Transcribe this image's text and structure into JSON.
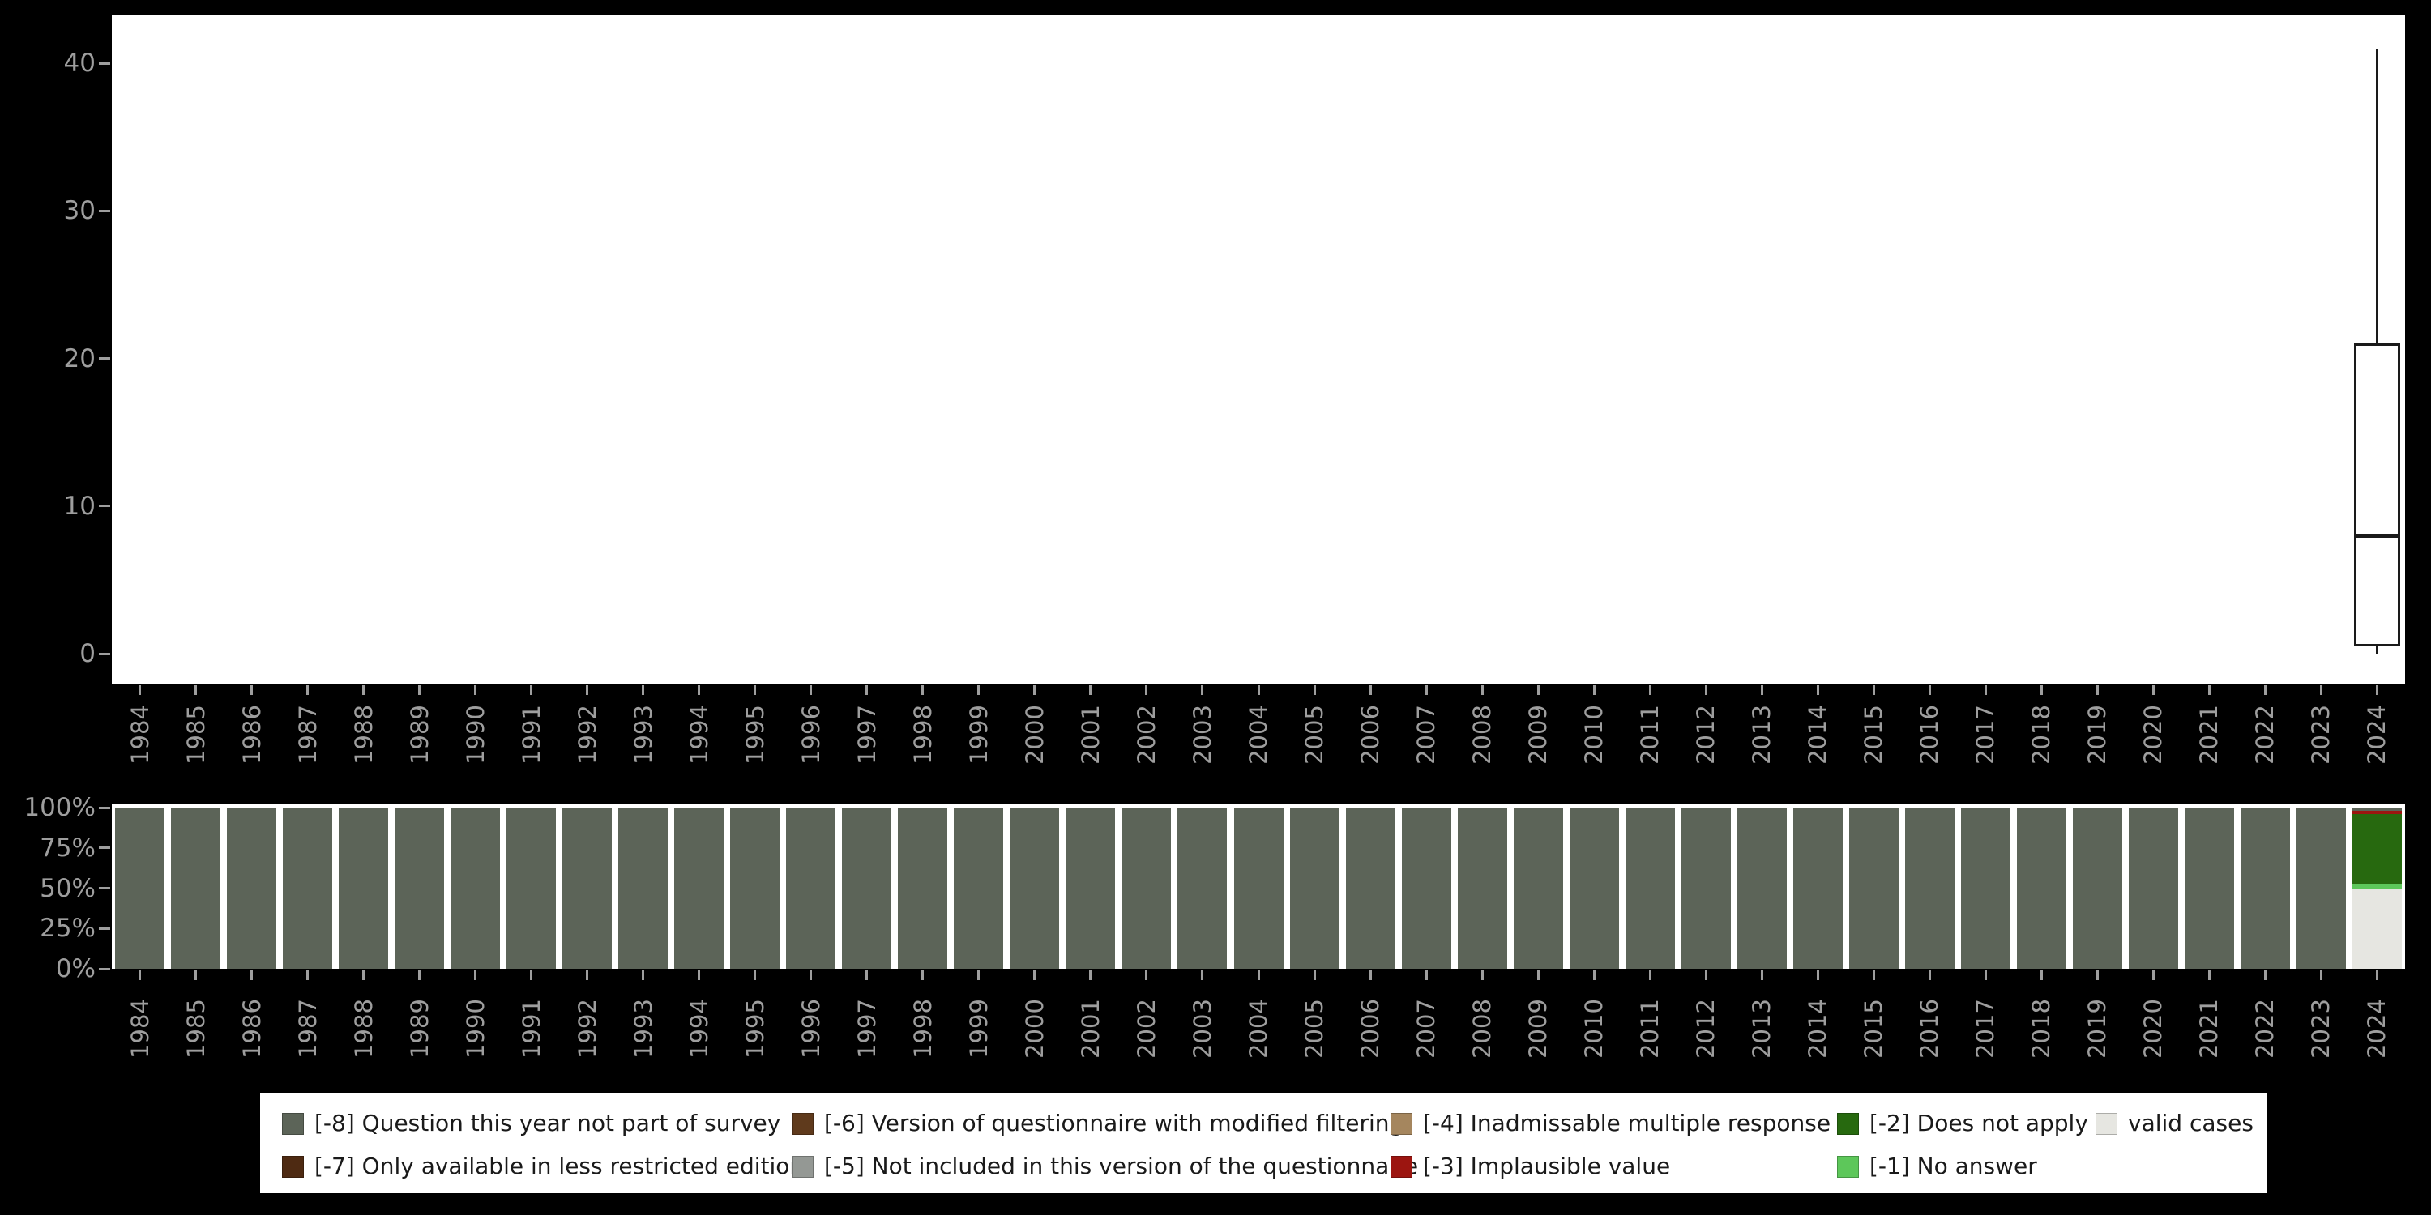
{
  "style": {
    "background": "#000000",
    "plot_background": "#ffffff",
    "axis_text_color": "#9e9e9e",
    "box_outline_color": "#1a1a1a",
    "legend_background": "#ffffff",
    "legend_text_color": "#1a1a1a"
  },
  "chart_data": {
    "categories": [
      "1984",
      "1985",
      "1986",
      "1987",
      "1988",
      "1989",
      "1990",
      "1991",
      "1992",
      "1993",
      "1994",
      "1995",
      "1996",
      "1997",
      "1998",
      "1999",
      "2000",
      "2001",
      "2002",
      "2003",
      "2004",
      "2005",
      "2006",
      "2007",
      "2008",
      "2009",
      "2010",
      "2011",
      "2012",
      "2013",
      "2014",
      "2015",
      "2016",
      "2017",
      "2018",
      "2019",
      "2020",
      "2021",
      "2022",
      "2023",
      "2024"
    ],
    "charts": [
      {
        "type": "boxplot",
        "title": "",
        "xlabel": "",
        "ylabel": "",
        "ylim": [
          0,
          41
        ],
        "yticks": [
          0,
          10,
          20,
          30,
          40
        ],
        "grid": false,
        "boxes": [
          {
            "category": "2024",
            "min": 0,
            "q1": 0.5,
            "median": 8,
            "q3": 21,
            "max": 41
          }
        ]
      },
      {
        "type": "stacked_bar_percent",
        "title": "",
        "xlabel": "",
        "ylabel": "",
        "ylim": [
          0,
          100
        ],
        "ytick_labels": [
          "100%",
          "75%",
          "50%",
          "25%",
          "0%"
        ],
        "grid": false,
        "default_stack_top_to_bottom": [
          {
            "key": "-8",
            "pct": 100
          }
        ],
        "overrides_top_to_bottom": {
          "2024": [
            {
              "key": "-8",
              "pct": 2
            },
            {
              "key": "-3",
              "pct": 2
            },
            {
              "key": "-2",
              "pct": 43
            },
            {
              "key": "-1",
              "pct": 4
            },
            {
              "key": "valid",
              "pct": 49
            }
          ]
        }
      }
    ]
  },
  "legend": {
    "position": "bottom",
    "entries": {
      "-8": {
        "label": "[-8] Question this year not part of survey",
        "color": "#5c6458"
      },
      "-7": {
        "label": "[-7] Only available in less restricted edition",
        "color": "#4e2a12"
      },
      "-6": {
        "label": "[-6] Version of questionnaire with modified filtering",
        "color": "#5f3a1c"
      },
      "-5": {
        "label": "[-5] Not included in this version of the questionnaire",
        "color": "#949894"
      },
      "-4": {
        "label": "[-4] Inadmissable multiple response",
        "color": "#a5865e"
      },
      "-3": {
        "label": "[-3] Implausible value",
        "color": "#9c1510"
      },
      "-2": {
        "label": "[-2] Does not apply",
        "color": "#27690f"
      },
      "-1": {
        "label": "[-1] No answer",
        "color": "#5dc75a"
      },
      "valid": {
        "label": "valid cases",
        "color": "#e6e6e1"
      }
    },
    "rows": [
      [
        "-8",
        "-6",
        "-4",
        "-2",
        "valid"
      ],
      [
        "-7",
        "-5",
        "-3",
        "-1"
      ]
    ]
  }
}
